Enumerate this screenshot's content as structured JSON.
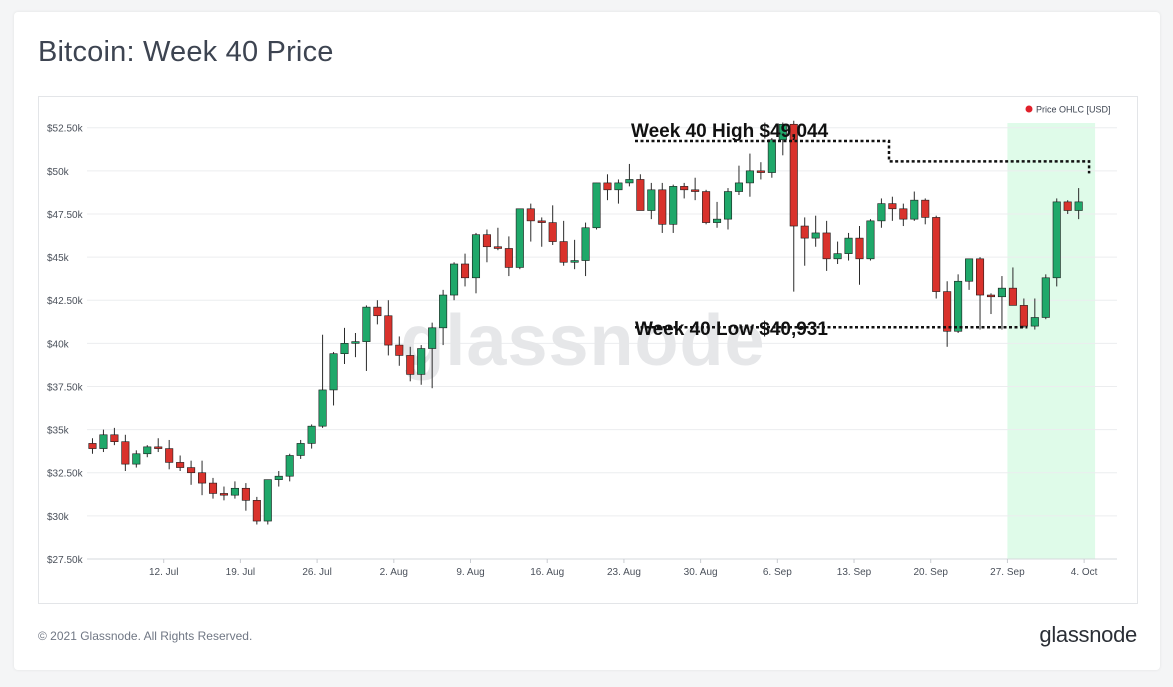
{
  "page": {
    "title": "Bitcoin: Week 40 Price",
    "footer_copyright": "© 2021 Glassnode. All Rights Reserved.",
    "footer_logo": "glassnode",
    "watermark": "glassnode"
  },
  "colors": {
    "up": "#1fa86a",
    "down": "#d9322c",
    "highlight": "#dffbe9",
    "legend_dot": "#e0202a",
    "grid": "#ecedef"
  },
  "chart_data": {
    "type": "candlestick",
    "title": "Bitcoin: Week 40 Price",
    "legend": [
      {
        "name": "Price OHLC [USD]",
        "placement": "top-right"
      }
    ],
    "y_ticks": [
      "$27.50k",
      "$30k",
      "$32.50k",
      "$35k",
      "$37.50k",
      "$40k",
      "$42.50k",
      "$45k",
      "$47.50k",
      "$50k",
      "$52.50k"
    ],
    "ylim": [
      27500,
      53700
    ],
    "x_ticks": [
      "12. Jul",
      "19. Jul",
      "26. Jul",
      "2. Aug",
      "9. Aug",
      "16. Aug",
      "23. Aug",
      "30. Aug",
      "6. Sep",
      "13. Sep",
      "20. Sep",
      "27. Sep",
      "4. Oct"
    ],
    "x_start": "2021-07-05",
    "x_end": "2021-10-07",
    "highlight_range": [
      "2021-09-27",
      "2021-10-04"
    ],
    "annotations": [
      {
        "text": "Week 40 High $49,044",
        "value": 49044
      },
      {
        "text": "Week 40 Low $40,931",
        "value": 40931
      }
    ],
    "grid": true,
    "series": [
      {
        "name": "Price OHLC [USD]",
        "ohlc": [
          [
            "2021-07-05",
            34200,
            34500,
            33600,
            33900
          ],
          [
            "2021-07-06",
            33900,
            35000,
            33700,
            34700
          ],
          [
            "2021-07-07",
            34700,
            35100,
            34100,
            34300
          ],
          [
            "2021-07-08",
            34300,
            34700,
            32600,
            33000
          ],
          [
            "2021-07-09",
            33000,
            33800,
            32800,
            33600
          ],
          [
            "2021-07-10",
            33600,
            34100,
            33400,
            34000
          ],
          [
            "2021-07-11",
            34000,
            34500,
            33700,
            33900
          ],
          [
            "2021-07-12",
            33900,
            34400,
            32700,
            33100
          ],
          [
            "2021-07-13",
            33100,
            33500,
            32600,
            32800
          ],
          [
            "2021-07-14",
            32800,
            33200,
            31800,
            32500
          ],
          [
            "2021-07-15",
            32500,
            33200,
            31200,
            31900
          ],
          [
            "2021-07-16",
            31900,
            32200,
            31000,
            31300
          ],
          [
            "2021-07-17",
            31300,
            31700,
            30900,
            31200
          ],
          [
            "2021-07-18",
            31200,
            32000,
            31000,
            31600
          ],
          [
            "2021-07-19",
            31600,
            31900,
            30300,
            30900
          ],
          [
            "2021-07-20",
            30900,
            31100,
            29500,
            29700
          ],
          [
            "2021-07-21",
            29700,
            32100,
            29500,
            32100
          ],
          [
            "2021-07-22",
            32100,
            32600,
            31700,
            32300
          ],
          [
            "2021-07-23",
            32300,
            33600,
            32000,
            33500
          ],
          [
            "2021-07-24",
            33500,
            34400,
            33300,
            34200
          ],
          [
            "2021-07-25",
            34200,
            35300,
            33900,
            35200
          ],
          [
            "2021-07-26",
            35200,
            40500,
            35100,
            37300
          ],
          [
            "2021-07-27",
            37300,
            39500,
            36400,
            39400
          ],
          [
            "2021-07-28",
            39400,
            40900,
            38800,
            40000
          ],
          [
            "2021-07-29",
            40000,
            40600,
            39200,
            40100
          ],
          [
            "2021-07-30",
            40100,
            42200,
            38400,
            42100
          ],
          [
            "2021-07-31",
            42100,
            42500,
            41100,
            41600
          ],
          [
            "2021-08-01",
            41600,
            42500,
            39300,
            39900
          ],
          [
            "2021-08-02",
            39900,
            40400,
            38700,
            39300
          ],
          [
            "2021-08-03",
            39300,
            39800,
            37800,
            38200
          ],
          [
            "2021-08-04",
            38200,
            39900,
            37600,
            39700
          ],
          [
            "2021-08-05",
            39700,
            41200,
            37400,
            40900
          ],
          [
            "2021-08-06",
            40900,
            43100,
            39900,
            42800
          ],
          [
            "2021-08-07",
            42800,
            44700,
            42500,
            44600
          ],
          [
            "2021-08-08",
            44600,
            45200,
            43300,
            43800
          ],
          [
            "2021-08-09",
            43800,
            46400,
            42900,
            46300
          ],
          [
            "2021-08-10",
            46300,
            46600,
            44700,
            45600
          ],
          [
            "2021-08-11",
            45600,
            46700,
            45400,
            45500
          ],
          [
            "2021-08-12",
            45500,
            46200,
            43900,
            44400
          ],
          [
            "2021-08-13",
            44400,
            47800,
            44300,
            47800
          ],
          [
            "2021-08-14",
            47800,
            48100,
            45900,
            47100
          ],
          [
            "2021-08-15",
            47100,
            47300,
            45600,
            47000
          ],
          [
            "2021-08-16",
            47000,
            48000,
            45700,
            45900
          ],
          [
            "2021-08-17",
            45900,
            47100,
            44500,
            44700
          ],
          [
            "2021-08-18",
            44700,
            46000,
            44300,
            44800
          ],
          [
            "2021-08-19",
            44800,
            47000,
            43900,
            46700
          ],
          [
            "2021-08-20",
            46700,
            49300,
            46600,
            49300
          ],
          [
            "2021-08-21",
            49300,
            49800,
            48300,
            48900
          ],
          [
            "2021-08-22",
            48900,
            49500,
            48100,
            49300
          ],
          [
            "2021-08-23",
            49300,
            50400,
            49100,
            49500
          ],
          [
            "2021-08-24",
            49500,
            49800,
            47700,
            47700
          ],
          [
            "2021-08-25",
            47700,
            49300,
            47200,
            48900
          ],
          [
            "2021-08-26",
            48900,
            49300,
            46400,
            46900
          ],
          [
            "2021-08-27",
            46900,
            49200,
            46400,
            49100
          ],
          [
            "2021-08-28",
            49100,
            49300,
            48400,
            48900
          ],
          [
            "2021-08-29",
            48900,
            49600,
            48300,
            48800
          ],
          [
            "2021-08-30",
            48800,
            48900,
            46900,
            47000
          ],
          [
            "2021-08-31",
            47000,
            48200,
            46700,
            47200
          ],
          [
            "2021-09-01",
            47200,
            49000,
            46600,
            48800
          ],
          [
            "2021-09-02",
            48800,
            50300,
            48600,
            49300
          ],
          [
            "2021-09-03",
            49300,
            51000,
            48500,
            50000
          ],
          [
            "2021-09-04",
            50000,
            50500,
            49500,
            49900
          ],
          [
            "2021-09-05",
            49900,
            51900,
            49600,
            51800
          ],
          [
            "2021-09-06",
            51800,
            52800,
            50900,
            52700
          ],
          [
            "2021-09-07",
            52700,
            52900,
            43000,
            46800
          ],
          [
            "2021-09-08",
            46800,
            47300,
            44500,
            46100
          ],
          [
            "2021-09-09",
            46100,
            47400,
            45600,
            46400
          ],
          [
            "2021-09-10",
            46400,
            47100,
            44200,
            44900
          ],
          [
            "2021-09-11",
            44900,
            45900,
            44600,
            45200
          ],
          [
            "2021-09-12",
            45200,
            46400,
            44800,
            46100
          ],
          [
            "2021-09-13",
            46100,
            46800,
            43400,
            44900
          ],
          [
            "2021-09-14",
            44900,
            47200,
            44800,
            47100
          ],
          [
            "2021-09-15",
            47100,
            48400,
            46700,
            48100
          ],
          [
            "2021-09-16",
            48100,
            48500,
            47100,
            47800
          ],
          [
            "2021-09-17",
            47800,
            48100,
            46800,
            47200
          ],
          [
            "2021-09-18",
            47200,
            48800,
            47100,
            48300
          ],
          [
            "2021-09-19",
            48300,
            48400,
            46900,
            47300
          ],
          [
            "2021-09-20",
            47300,
            47400,
            42600,
            43000
          ],
          [
            "2021-09-21",
            43000,
            43600,
            39800,
            40700
          ],
          [
            "2021-09-22",
            40700,
            44000,
            40600,
            43600
          ],
          [
            "2021-09-23",
            43600,
            44900,
            43100,
            44900
          ],
          [
            "2021-09-24",
            44900,
            45000,
            40800,
            42800
          ],
          [
            "2021-09-25",
            42800,
            42900,
            41700,
            42700
          ],
          [
            "2021-09-26",
            42700,
            43900,
            40800,
            43200
          ],
          [
            "2021-09-27",
            43200,
            44400,
            42200,
            42200
          ],
          [
            "2021-09-28",
            42200,
            42600,
            40900,
            41000
          ],
          [
            "2021-09-29",
            41000,
            42600,
            40800,
            41500
          ],
          [
            "2021-09-30",
            41500,
            44000,
            41400,
            43800
          ],
          [
            "2021-10-01",
            43800,
            48400,
            43300,
            48200
          ],
          [
            "2021-10-02",
            48200,
            48300,
            47500,
            47700
          ],
          [
            "2021-10-03",
            47700,
            49000,
            47200,
            48200
          ]
        ]
      }
    ]
  }
}
